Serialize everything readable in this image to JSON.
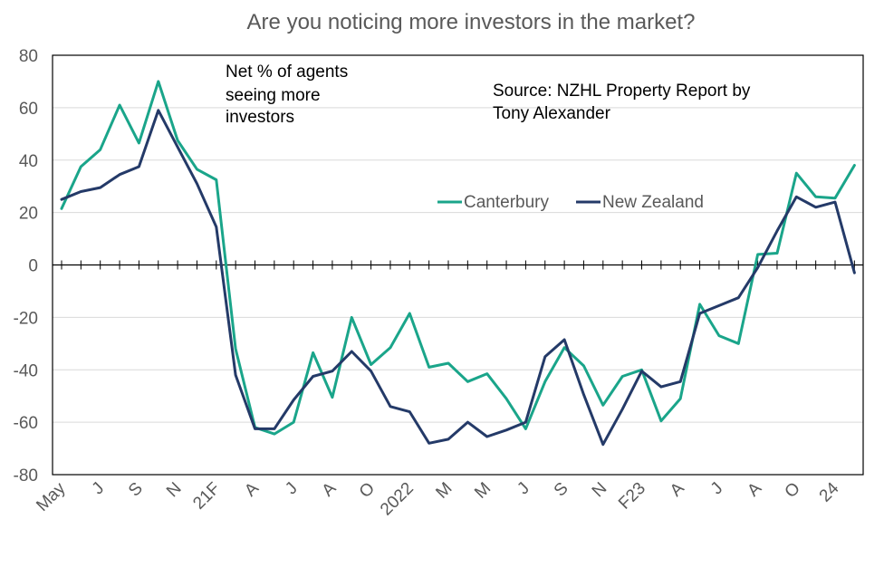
{
  "chart_data": {
    "type": "line",
    "title": "Are you noticing more investors in the market?",
    "annotation": [
      "Net % of agents",
      "seeing more",
      "investors"
    ],
    "source": [
      "Source: NZHL Property Report by",
      "Tony Alexander"
    ],
    "ylim": [
      -80,
      80
    ],
    "yticks": [
      80,
      60,
      40,
      20,
      0,
      -20,
      -40,
      -60,
      -80
    ],
    "grid": true,
    "legend_position": "center-right",
    "x_tick_labels": [
      {
        "index": 0,
        "label": "May"
      },
      {
        "index": 2,
        "label": "J"
      },
      {
        "index": 4,
        "label": "S"
      },
      {
        "index": 6,
        "label": "N"
      },
      {
        "index": 8,
        "label": "21F"
      },
      {
        "index": 10,
        "label": "A"
      },
      {
        "index": 12,
        "label": "J"
      },
      {
        "index": 14,
        "label": "A"
      },
      {
        "index": 16,
        "label": "O"
      },
      {
        "index": 18,
        "label": "2022"
      },
      {
        "index": 20,
        "label": "M"
      },
      {
        "index": 22,
        "label": "M"
      },
      {
        "index": 24,
        "label": "J"
      },
      {
        "index": 26,
        "label": "S"
      },
      {
        "index": 28,
        "label": "N"
      },
      {
        "index": 30,
        "label": "F23"
      },
      {
        "index": 32,
        "label": "A"
      },
      {
        "index": 34,
        "label": "J"
      },
      {
        "index": 36,
        "label": "A"
      },
      {
        "index": 38,
        "label": "O"
      },
      {
        "index": 40,
        "label": "24"
      }
    ],
    "n_points": 42,
    "series": [
      {
        "name": "Canterbury",
        "color": "#1aa58a",
        "values": [
          21.5,
          37.5,
          44,
          61,
          46.5,
          70,
          47.5,
          36.5,
          32.5,
          -32,
          -62,
          -64.5,
          -60,
          -33.5,
          -50.5,
          -20,
          -38,
          -31.5,
          -18.5,
          -39,
          -37.5,
          -44.5,
          -41.5,
          -51,
          -62.5,
          -44.5,
          -31.5,
          -38.5,
          -53.5,
          -42.5,
          -40,
          -59.5,
          -51,
          -15,
          -27,
          -30,
          4,
          4.5,
          35,
          26,
          25.5,
          38
        ]
      },
      {
        "name": "New Zealand",
        "color": "#243a68",
        "values": [
          25,
          28,
          29.5,
          34.5,
          37.5,
          59,
          45,
          31,
          14.5,
          -42,
          -62.5,
          -62.5,
          -51.5,
          -42.5,
          -40.5,
          -33,
          -40.5,
          -54,
          -56,
          -68,
          -66.5,
          -60,
          -65.5,
          -63,
          -60,
          -35,
          -28.5,
          -49.5,
          -68.5,
          -55,
          -40.5,
          -46.5,
          -44.5,
          -18.5,
          -15.5,
          -12.5,
          -1,
          13,
          26,
          22,
          24,
          -3
        ]
      }
    ]
  }
}
